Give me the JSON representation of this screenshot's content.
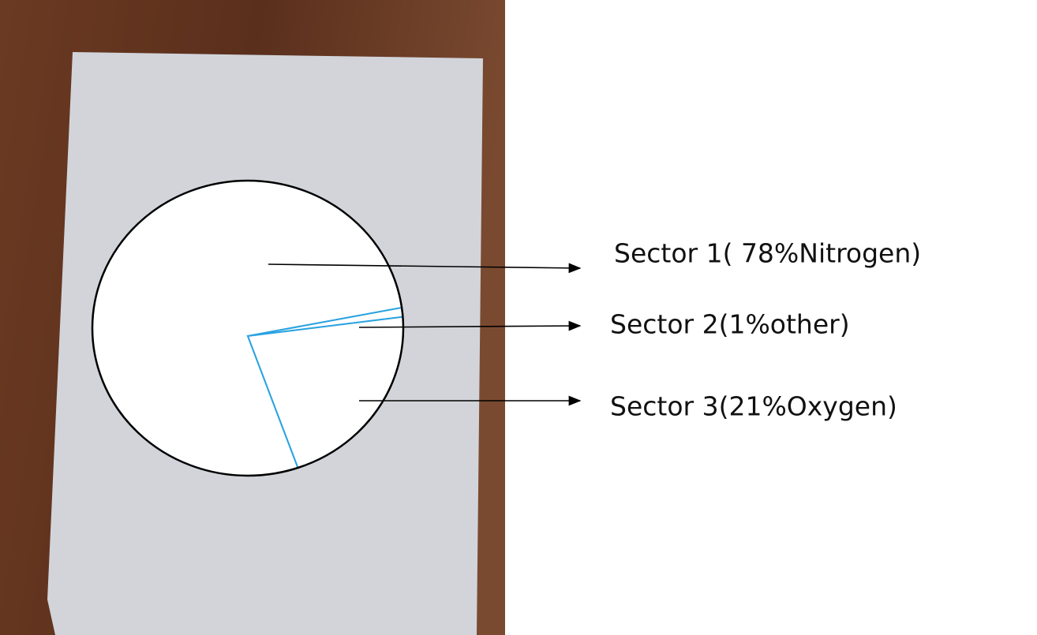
{
  "chart_data": {
    "type": "pie",
    "values": [
      78,
      1,
      21
    ],
    "value_labels": [
      "Sector 1( 78%Nitrogen)",
      "Sector 2(1%other)",
      "Sector 3(21%Oxygen)"
    ],
    "color": "#ffffff",
    "edge_color": "#2aa3e0"
  }
}
